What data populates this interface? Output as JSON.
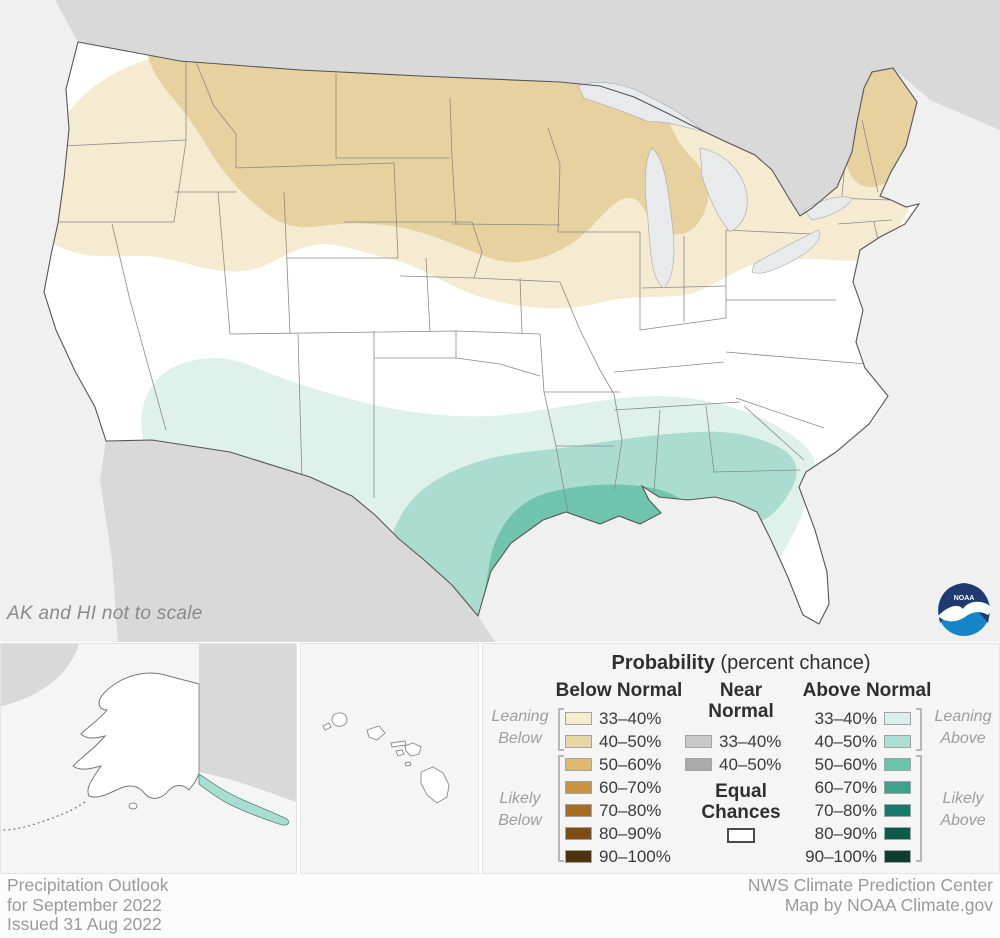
{
  "map": {
    "note": "AK and HI not to scale",
    "colors": {
      "ocean": "#f0f0f1",
      "foreign_land": "#d9d9da",
      "lakes": "#e9eaec",
      "us_fill": "#ffffff",
      "outline": "#555555",
      "state_line": "#8a8a8a",
      "below_33_40": "#f5ebd1",
      "below_40_50": "#e7d19e",
      "above_33_40": "#def1ea",
      "above_40_50": "#abdcd0",
      "above_50_60": "#6fc5ae",
      "ak_above": "#a9ddd0"
    }
  },
  "legend": {
    "title": "Probability",
    "title_suffix": "(percent chance)",
    "below": {
      "header": "Below Normal",
      "rows": [
        {
          "range": "33–40%",
          "color": "#f6ecce"
        },
        {
          "range": "40–50%",
          "color": "#e9d6a7"
        },
        {
          "range": "50–60%",
          "color": "#ddba6e"
        },
        {
          "range": "60–70%",
          "color": "#c99440"
        },
        {
          "range": "70–80%",
          "color": "#a96d21"
        },
        {
          "range": "80–90%",
          "color": "#7c4e14"
        },
        {
          "range": "90–100%",
          "color": "#4e330c"
        }
      ]
    },
    "near": {
      "header_line1": "Near",
      "header_line2": "Normal",
      "rows": [
        {
          "range": "33–40%",
          "color": "#c8c8c8"
        },
        {
          "range": "40–50%",
          "color": "#aaaaaa"
        }
      ]
    },
    "above": {
      "header": "Above Normal",
      "rows": [
        {
          "range": "33–40%",
          "color": "#d9efe9"
        },
        {
          "range": "40–50%",
          "color": "#abdfd1"
        },
        {
          "range": "50–60%",
          "color": "#6cc3ac"
        },
        {
          "range": "60–70%",
          "color": "#3da18e"
        },
        {
          "range": "70–80%",
          "color": "#15796b"
        },
        {
          "range": "80–90%",
          "color": "#0b5a4c"
        },
        {
          "range": "90–100%",
          "color": "#0c3d2f"
        }
      ]
    },
    "equal": {
      "line1": "Equal",
      "line2": "Chances",
      "color": "#ffffff"
    },
    "side": {
      "leaning_below_1": "Leaning",
      "leaning_below_2": "Below",
      "likely_below_1": "Likely",
      "likely_below_2": "Below",
      "leaning_above_1": "Leaning",
      "leaning_above_2": "Above",
      "likely_above_1": "Likely",
      "likely_above_2": "Above"
    }
  },
  "footer": {
    "left_lines": [
      "Precipitation Outlook",
      "for September 2022",
      "Issued 31 Aug 2022"
    ],
    "right_lines": [
      "NWS Climate Prediction Center",
      "Map by NOAA Climate.gov"
    ]
  },
  "logo": {
    "text": "NOAA"
  }
}
